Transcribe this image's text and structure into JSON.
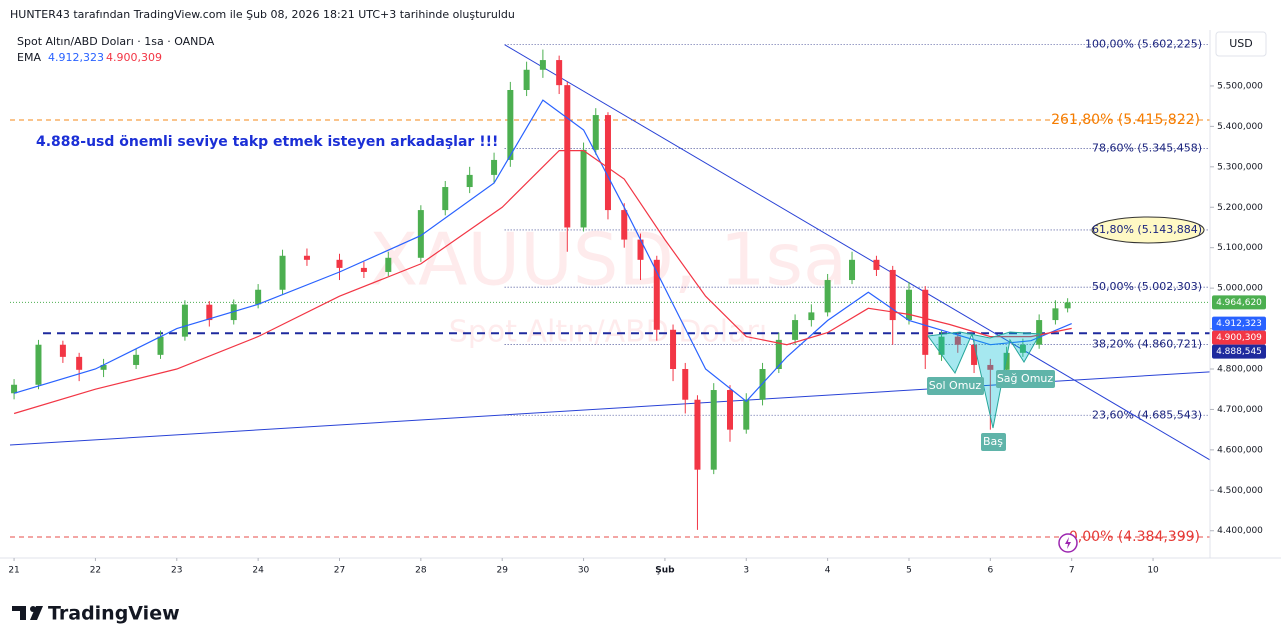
{
  "header": "HUNTER43 tarafından TradingView.com ile Şub 08, 2026 18:21 UTC+3 tarihinde oluşturuldu",
  "footer": "TradingView",
  "chart_data": {
    "type": "candlestick",
    "symbol": "Spot Altın/ABD Doları · 1sa · OANDA",
    "indicator": "EMA",
    "currency": "USD",
    "watermark": [
      "XAUUSD, 1sa",
      "Spot Altın/ABD Doları"
    ],
    "annotations": [
      "4.888-usd önemli seviye takp etmek isteyen arkadaşlar !!!",
      "Sol Omuz",
      "Baş",
      "Sağ Omuz"
    ],
    "xlim": [
      -0.05,
      14.7
    ],
    "xticks": [
      {
        "value": 0,
        "label": "21"
      },
      {
        "value": 1,
        "label": "22"
      },
      {
        "value": 2,
        "label": "23"
      },
      {
        "value": 3,
        "label": "24"
      },
      {
        "value": 4,
        "label": "27"
      },
      {
        "value": 5,
        "label": "28"
      },
      {
        "value": 6,
        "label": "29"
      },
      {
        "value": 7,
        "label": "30"
      },
      {
        "value": 8,
        "label": "Şub"
      },
      {
        "value": 9,
        "label": "3"
      },
      {
        "value": 10,
        "label": "4"
      },
      {
        "value": 11,
        "label": "5"
      },
      {
        "value": 12,
        "label": "6"
      },
      {
        "value": 13,
        "label": "7"
      },
      {
        "value": 14,
        "label": "10"
      }
    ],
    "ylim": [
      4340,
      5626
    ],
    "yticks": [
      {
        "value": 4400,
        "label": "4.400,000"
      },
      {
        "value": 4500,
        "label": "4.500,000"
      },
      {
        "value": 4600,
        "label": "4.600,000"
      },
      {
        "value": 4700,
        "label": "4.700,000"
      },
      {
        "value": 4800,
        "label": "4.800,000"
      },
      {
        "value": 4900,
        "label": "4.900,000"
      },
      {
        "value": 5000,
        "label": "5.000,000"
      },
      {
        "value": 5100,
        "label": "5.100,000"
      },
      {
        "value": 5200,
        "label": "5.200,000"
      },
      {
        "value": 5300,
        "label": "5.300,000"
      },
      {
        "value": 5400,
        "label": "5.400,000"
      },
      {
        "value": 5500,
        "label": "5.500,000"
      }
    ],
    "up_color": "#4caf50",
    "down_color": "#f23645",
    "x": [
      0,
      0.3,
      0.6,
      0.8,
      1.1,
      1.5,
      1.8,
      2.1,
      2.4,
      2.7,
      3.0,
      3.3,
      3.6,
      4.0,
      4.3,
      4.6,
      5.0,
      5.3,
      5.6,
      5.9,
      6.1,
      6.3,
      6.5,
      6.7,
      6.8,
      7.0,
      7.15,
      7.3,
      7.5,
      7.7,
      7.9,
      8.1,
      8.25,
      8.4,
      8.6,
      8.8,
      9.0,
      9.2,
      9.4,
      9.6,
      9.8,
      10.0,
      10.3,
      10.6,
      10.8,
      11.0,
      11.2,
      11.4,
      11.6,
      11.8,
      12.0,
      12.2,
      12.4,
      12.6,
      12.8,
      12.95
    ],
    "open": [
      4740,
      4761,
      4860,
      4830,
      4798,
      4810,
      4835,
      4880,
      4959,
      4921,
      4960,
      4996,
      5080,
      5070,
      5050,
      5040,
      5075,
      5193,
      5250,
      5280,
      5317,
      5490,
      5540,
      5564,
      5502,
      5150,
      5342,
      5428,
      5193,
      5120,
      5070,
      4897,
      4800,
      4724,
      4551,
      4748,
      4650,
      4724,
      4800,
      4872,
      4921,
      4940,
      5020,
      5070,
      5045,
      4921,
      4996,
      4835,
      4880,
      4860,
      4810,
      4798,
      4840,
      4860,
      4921,
      4950
    ],
    "high": [
      4775,
      4872,
      4870,
      4840,
      4825,
      4850,
      4895,
      4970,
      4968,
      4972,
      5010,
      5095,
      5098,
      5085,
      5065,
      5090,
      5205,
      5265,
      5300,
      5335,
      5510,
      5560,
      5590,
      5575,
      5510,
      5360,
      5445,
      5435,
      5210,
      5135,
      5080,
      4910,
      4815,
      4735,
      4765,
      4760,
      4740,
      4815,
      4890,
      4935,
      4960,
      5035,
      5090,
      5080,
      5055,
      5015,
      5005,
      4895,
      4890,
      4870,
      4825,
      4855,
      4875,
      4935,
      4970,
      4975
    ],
    "low": [
      4725,
      4750,
      4815,
      4770,
      4780,
      4800,
      4825,
      4870,
      4905,
      4910,
      4950,
      4985,
      5055,
      5020,
      5025,
      5030,
      5065,
      5180,
      5235,
      5260,
      5300,
      5475,
      5520,
      5480,
      5090,
      5140,
      5330,
      5170,
      5100,
      5020,
      4870,
      4770,
      4690,
      4402,
      4540,
      4620,
      4640,
      4710,
      4790,
      4860,
      4905,
      4930,
      5010,
      5030,
      4860,
      4910,
      4800,
      4820,
      4840,
      4790,
      4650,
      4785,
      4830,
      4850,
      4910,
      4940
    ],
    "close": [
      4761,
      4860,
      4830,
      4798,
      4810,
      4835,
      4880,
      4959,
      4921,
      4960,
      4996,
      5080,
      5070,
      5050,
      5040,
      5075,
      5193,
      5250,
      5280,
      5317,
      5490,
      5540,
      5564,
      5502,
      5150,
      5342,
      5428,
      5193,
      5120,
      5070,
      4897,
      4800,
      4724,
      4551,
      4748,
      4650,
      4724,
      4800,
      4872,
      4921,
      4940,
      5020,
      5070,
      5045,
      4921,
      4996,
      4835,
      4880,
      4860,
      4810,
      4798,
      4840,
      4860,
      4921,
      4950,
      4964.62
    ],
    "series": [
      {
        "color": "#2962ff",
        "x": [
          0,
          1,
          2,
          3,
          4,
          5,
          5.9,
          6.5,
          7,
          7.5,
          8,
          8.5,
          9,
          9.5,
          10,
          10.5,
          11,
          11.5,
          12,
          12.5,
          13
        ],
        "values": [
          4740,
          4800,
          4900,
          4960,
          5040,
          5130,
          5260,
          5465,
          5391,
          5200,
          5000,
          4800,
          4720,
          4830,
          4920,
          4990,
          4920,
          4890,
          4860,
          4870,
          4912.323
        ]
      },
      {
        "color": "#f23645",
        "x": [
          0,
          1,
          2,
          3,
          4,
          5,
          6,
          6.7,
          7,
          7.5,
          8,
          8.5,
          9,
          9.5,
          10,
          10.5,
          11,
          11.5,
          12,
          12.5,
          13
        ],
        "values": [
          4690,
          4750,
          4800,
          4880,
          4980,
          5060,
          5200,
          5340,
          5340,
          5270,
          5120,
          4980,
          4880,
          4860,
          4890,
          4950,
          4935,
          4910,
          4880,
          4880,
          4900.309
        ]
      }
    ],
    "fib_levels": [
      {
        "label": "100,00% (5.602,225)",
        "value": 5602.225,
        "color": "#1a237e",
        "style": "dotted"
      },
      {
        "label": "261,80% (5.415,822)",
        "value": 5415.822,
        "color": "#f57c00",
        "style": "dashed"
      },
      {
        "label": "78,60% (5.345,458)",
        "value": 5345.458,
        "color": "#1a237e",
        "style": "dotted"
      },
      {
        "label": "61,80% (5.143,884)",
        "value": 5143.884,
        "color": "#1a237e",
        "style": "dotted",
        "highlight": true
      },
      {
        "label": "50,00% (5.002,303)",
        "value": 5002.303,
        "color": "#1a237e",
        "style": "dotted"
      },
      {
        "label": "38,20% (4.860,721)",
        "value": 4860.721,
        "color": "#1a237e",
        "style": "dotted"
      },
      {
        "label": "23,60% (4.685,543)",
        "value": 4685.543,
        "color": "#1a237e",
        "style": "dotted"
      },
      {
        "label": "0,00% (4.384,399)",
        "value": 4384.399,
        "color": "#e53935",
        "style": "dashed"
      }
    ],
    "price_labels": [
      {
        "value": 4964.62,
        "label": "4.964,620",
        "color": "#4caf50",
        "line": "dotted"
      },
      {
        "value": 4912.323,
        "label": "4.912,323",
        "color": "#2962ff"
      },
      {
        "value": 4900.309,
        "label": "4.900,309",
        "color": "#f23645"
      },
      {
        "value": 4888.545,
        "label": "4.888,545",
        "color": "#1e2a9e",
        "line": "dashed"
      }
    ],
    "trendlines": [
      {
        "x": [
          6.03,
          14.7
        ],
        "y": [
          5602,
          4575
        ],
        "color": "#2942d6"
      },
      {
        "x": [
          -0.05,
          14.7
        ],
        "y": [
          4612,
          4793
        ],
        "color": "#2942d6"
      }
    ]
  }
}
